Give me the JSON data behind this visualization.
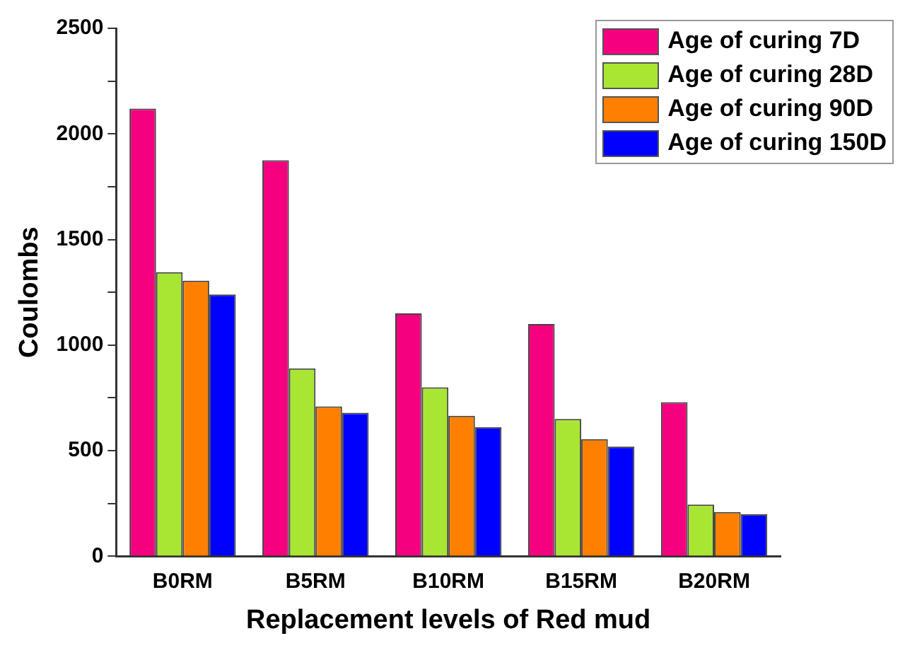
{
  "chart_data": {
    "type": "bar",
    "xlabel": "Replacement levels of Red mud",
    "ylabel": "Coulombs",
    "categories": [
      "B0RM",
      "B5RM",
      "B10RM",
      "B15RM",
      "B20RM"
    ],
    "series": [
      {
        "name": "Age of curing 7D",
        "color": "#f5007f",
        "values": [
          2120,
          1875,
          1150,
          1100,
          730
        ]
      },
      {
        "name": "Age of curing 28D",
        "color": "#a8e633",
        "values": [
          1345,
          890,
          800,
          650,
          245
        ]
      },
      {
        "name": "Age of curing 90D",
        "color": "#ff8000",
        "values": [
          1305,
          710,
          665,
          555,
          210
        ]
      },
      {
        "name": "Age of curing 150D",
        "color": "#0000ff",
        "values": [
          1240,
          680,
          612,
          520,
          200
        ]
      }
    ],
    "ylim": [
      0,
      2500
    ],
    "yticks": [
      0,
      {
        "value": 250,
        "label": null
      },
      500,
      {
        "value": 750,
        "label": null
      },
      1000,
      {
        "value": 1250,
        "label": null
      },
      1500,
      {
        "value": 1750,
        "label": null
      },
      2000,
      {
        "value": 2250,
        "label": null
      },
      2500
    ],
    "grid": false,
    "legend": "top right"
  }
}
